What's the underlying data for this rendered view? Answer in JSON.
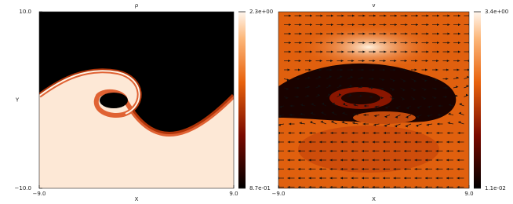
{
  "chart_data": [
    {
      "type": "heatmap",
      "title": "ρ",
      "xlabel": "X",
      "ylabel": "Y",
      "xlim": [
        -9,
        9
      ],
      "xticks": [
        {
          "value": -9,
          "label": "−9.0"
        },
        {
          "value": 9,
          "label": "9.0"
        }
      ],
      "ylim": [
        -10,
        10
      ],
      "yticks": [
        {
          "value": -10,
          "label": "−10.0"
        },
        {
          "value": 10,
          "label": "10.0"
        }
      ],
      "colorbar": {
        "lim": [
          0.87,
          2.3
        ],
        "ticks": [
          {
            "value": 0.87,
            "label": "8.7e-01"
          },
          {
            "value": 2.3,
            "label": "2.3e+00"
          }
        ]
      }
    },
    {
      "type": "heatmap",
      "title": "v",
      "xlabel": "X",
      "xlim": [
        -9,
        9
      ],
      "xticks": [
        {
          "value": -9,
          "label": "−9.0"
        },
        {
          "value": 9,
          "label": "9.0"
        }
      ],
      "colorbar": {
        "lim": [
          0.011,
          3.4
        ],
        "ticks": [
          {
            "value": 0.011,
            "label": "1.1e-02"
          },
          {
            "value": 3.4,
            "label": "3.4e+00"
          }
        ]
      }
    }
  ]
}
